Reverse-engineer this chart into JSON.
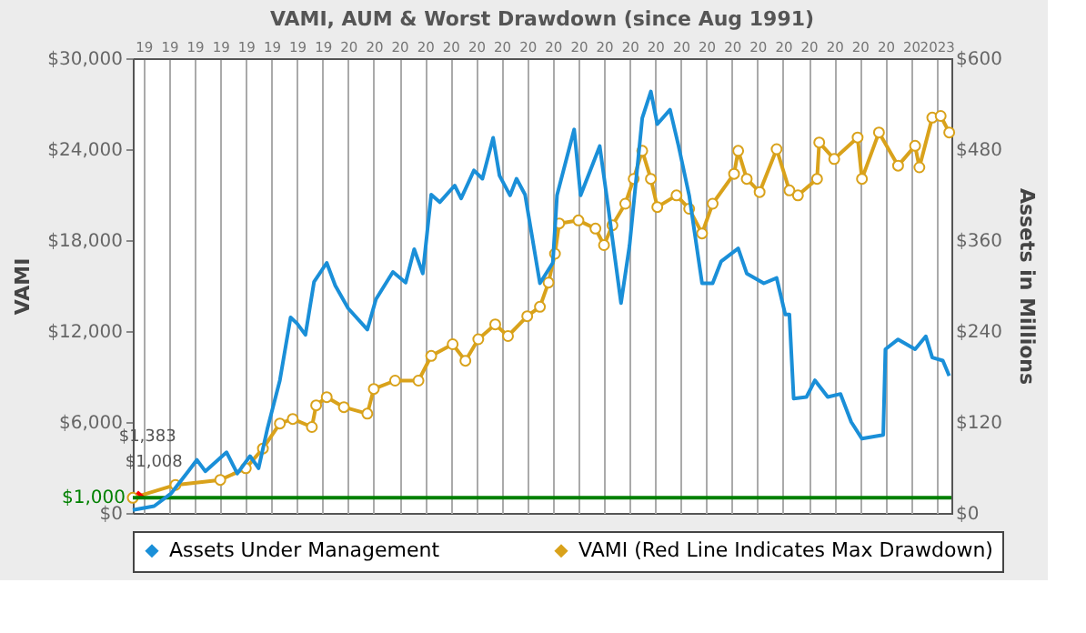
{
  "chart_data": {
    "type": "line",
    "title": "VAMI, AUM & Worst Drawdown (since Aug 1991)",
    "ylabel": "VAMI",
    "y2label": "Assets in Millions",
    "xlim": [
      "1991-08",
      "2023-08"
    ],
    "xticks": [
      {
        "value": "1992-01",
        "label": "19"
      },
      {
        "value": "1993-01",
        "label": "19"
      },
      {
        "value": "1994-01",
        "label": "19"
      },
      {
        "value": "1995-01",
        "label": "19"
      },
      {
        "value": "1996-01",
        "label": "19"
      },
      {
        "value": "1997-01",
        "label": "19"
      },
      {
        "value": "1998-01",
        "label": "19"
      },
      {
        "value": "1999-01",
        "label": "19"
      },
      {
        "value": "2000-01",
        "label": "20"
      },
      {
        "value": "2001-01",
        "label": "20"
      },
      {
        "value": "2002-01",
        "label": "20"
      },
      {
        "value": "2003-01",
        "label": "20"
      },
      {
        "value": "2004-01",
        "label": "20"
      },
      {
        "value": "2005-01",
        "label": "20"
      },
      {
        "value": "2006-01",
        "label": "20"
      },
      {
        "value": "2007-01",
        "label": "20"
      },
      {
        "value": "2008-01",
        "label": "20"
      },
      {
        "value": "2009-01",
        "label": "20"
      },
      {
        "value": "2010-01",
        "label": "20"
      },
      {
        "value": "2011-01",
        "label": "20"
      },
      {
        "value": "2012-01",
        "label": "20"
      },
      {
        "value": "2013-01",
        "label": "20"
      },
      {
        "value": "2014-01",
        "label": "20"
      },
      {
        "value": "2015-01",
        "label": "20"
      },
      {
        "value": "2016-01",
        "label": "20"
      },
      {
        "value": "2017-01",
        "label": "20"
      },
      {
        "value": "2018-01",
        "label": "20"
      },
      {
        "value": "2019-01",
        "label": "20"
      },
      {
        "value": "2020-01",
        "label": "20"
      },
      {
        "value": "2021-01",
        "label": "20"
      },
      {
        "value": "2022-01",
        "label": "20"
      },
      {
        "value": "2023-01",
        "label": "2023"
      }
    ],
    "ylim": [
      0,
      30000
    ],
    "yticks": [
      {
        "value": 0,
        "label": "$0"
      },
      {
        "value": 6000,
        "label": "$6,000"
      },
      {
        "value": 12000,
        "label": "$12,000"
      },
      {
        "value": 18000,
        "label": "$18,000"
      },
      {
        "value": 24000,
        "label": "$24,000"
      },
      {
        "value": 30000,
        "label": "$30,000"
      }
    ],
    "y2lim": [
      0,
      600
    ],
    "y2ticks": [
      {
        "value": 0,
        "label": "$0"
      },
      {
        "value": 120,
        "label": "$120"
      },
      {
        "value": 240,
        "label": "$240"
      },
      {
        "value": 360,
        "label": "$360"
      },
      {
        "value": 480,
        "label": "$480"
      },
      {
        "value": 600,
        "label": "$600"
      }
    ],
    "grid": "x",
    "legend": "bottom",
    "ref_lines": [
      {
        "axis": "y",
        "value": 1000,
        "label": "$1,000",
        "color": "#008000"
      }
    ],
    "annotations": [
      {
        "text": "$1,383",
        "x": "1991-10",
        "y": 1383
      },
      {
        "text": "$1,008",
        "x": "1992-01",
        "y": 1008
      }
    ],
    "series": [
      {
        "name": "Assets Under Management",
        "type": "line",
        "axis": "y2",
        "color": "#1a8fd8",
        "marker": "none",
        "x": [
          "1991-08",
          "1992-06",
          "1993-02",
          "1993-10",
          "1994-02",
          "1994-06",
          "1995-04",
          "1995-09",
          "1996-03",
          "1996-07",
          "1996-11",
          "1997-05",
          "1997-10",
          "1998-01",
          "1998-05",
          "1998-09",
          "1999-03",
          "1999-07",
          "2000-01",
          "2000-10",
          "2001-02",
          "2001-10",
          "2002-04",
          "2002-08",
          "2002-12",
          "2003-04",
          "2003-08",
          "2004-03",
          "2004-06",
          "2004-12",
          "2005-04",
          "2005-09",
          "2005-12",
          "2006-05",
          "2006-08",
          "2006-12",
          "2007-07",
          "2008-01",
          "2008-03",
          "2008-11",
          "2009-02",
          "2009-11",
          "2010-03",
          "2010-09",
          "2011-01",
          "2011-07",
          "2011-11",
          "2012-02",
          "2012-08",
          "2012-12",
          "2013-05",
          "2013-11",
          "2014-04",
          "2014-08",
          "2015-04",
          "2015-08",
          "2016-04",
          "2016-10",
          "2017-02",
          "2017-04",
          "2017-06",
          "2017-12",
          "2018-04",
          "2018-10",
          "2019-04",
          "2019-09",
          "2020-02",
          "2020-12",
          "2021-01",
          "2021-07",
          "2022-03",
          "2022-08",
          "2022-11",
          "2023-04",
          "2023-07"
        ],
        "values": [
          4,
          9,
          26,
          55,
          70,
          55,
          80,
          52,
          75,
          59,
          110,
          175,
          258,
          250,
          235,
          305,
          330,
          300,
          270,
          242,
          282,
          318,
          304,
          348,
          316,
          420,
          410,
          432,
          415,
          452,
          441,
          495,
          445,
          419,
          441,
          420,
          303,
          330,
          419,
          506,
          419,
          484,
          404,
          277,
          353,
          521,
          556,
          513,
          532,
          484,
          419,
          303,
          303,
          332,
          349,
          316,
          303,
          310,
          262,
          262,
          151,
          153,
          175,
          153,
          157,
          120,
          98,
          103,
          216,
          229,
          216,
          233,
          205,
          201,
          181
        ]
      },
      {
        "name": "VAMI (Red Line Indicates Max Drawdown)",
        "type": "line",
        "color": "#d9a21b",
        "marker": "circle",
        "x": [
          "1991-08",
          "1993-04",
          "1995-01",
          "1996-01",
          "1996-09",
          "1997-05",
          "1997-11",
          "1998-08",
          "1998-10",
          "1999-03",
          "1999-11",
          "2000-10",
          "2001-01",
          "2001-11",
          "2002-10",
          "2003-04",
          "2004-02",
          "2004-08",
          "2005-02",
          "2005-10",
          "2006-04",
          "2007-01",
          "2007-07",
          "2007-11",
          "2008-02",
          "2008-04",
          "2009-01",
          "2009-09",
          "2010-01",
          "2010-05",
          "2010-11",
          "2011-03",
          "2011-07",
          "2011-11",
          "2012-02",
          "2012-11",
          "2013-05",
          "2013-11",
          "2014-04",
          "2015-02",
          "2015-04",
          "2015-08",
          "2016-02",
          "2016-10",
          "2017-04",
          "2017-08",
          "2018-05",
          "2018-06",
          "2019-01",
          "2019-12",
          "2020-02",
          "2020-10",
          "2021-07",
          "2022-03",
          "2022-05",
          "2022-11",
          "2023-03",
          "2023-07"
        ],
        "values": [
          1000,
          1850,
          2180,
          2950,
          4250,
          5900,
          6200,
          5670,
          7100,
          7640,
          6980,
          6550,
          8180,
          8730,
          8730,
          10360,
          11130,
          10040,
          11460,
          12440,
          11670,
          12980,
          13600,
          15200,
          17100,
          19100,
          19300,
          18760,
          17670,
          18980,
          20400,
          22040,
          23890,
          22040,
          20180,
          20950,
          20070,
          18440,
          20400,
          22370,
          23890,
          22040,
          21170,
          24000,
          21280,
          20950,
          22040,
          24440,
          23350,
          24770,
          22040,
          25100,
          22910,
          24220,
          22800,
          26080,
          26190,
          25100
        ]
      },
      {
        "type": "line",
        "color": "#ff0000",
        "marker": "none",
        "x": [
          "1991-10",
          "1992-01"
        ],
        "values": [
          1383,
          1008
        ]
      }
    ]
  }
}
